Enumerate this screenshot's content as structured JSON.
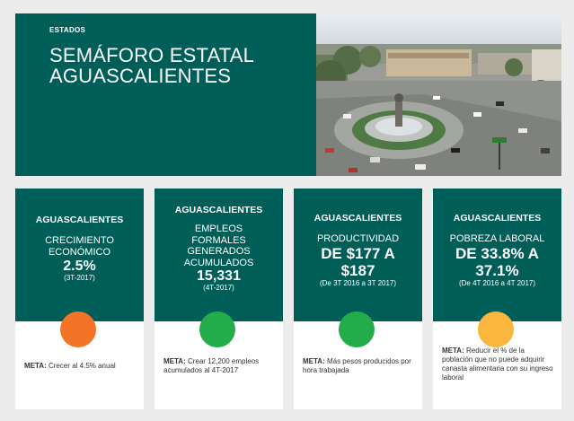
{
  "header": {
    "category": "ESTADOS",
    "title_line1": "SEMÁFORO ESTATAL",
    "title_line2": "AGUASCALIENTES"
  },
  "colors": {
    "teal": "#005e59",
    "orange": "#f47427",
    "green": "#22ac4a",
    "yellow": "#f9b73d"
  },
  "cards": [
    {
      "state": "AGUASCALIENTES",
      "indicator": "CRECIMIENTO ECONÓMICO",
      "value": "2.5%",
      "period": "(3T-2017)",
      "status": "orange",
      "goal_label": "META:",
      "goal_text": "Crecer al 4.5% anual"
    },
    {
      "state": "AGUASCALIENTES",
      "indicator": "EMPLEOS FORMALES GENERADOS ACUMULADOS",
      "value": "15,331",
      "period": "(4T-2017)",
      "status": "green",
      "goal_label": "META:",
      "goal_text": "Crear 12,200 empleos acumulados al 4T-2017"
    },
    {
      "state": "AGUASCALIENTES",
      "indicator": "PRODUCTIVIDAD",
      "value": "DE $177 A $187",
      "period": "(De 3T 2016 a 3T 2017)",
      "status": "green",
      "goal_label": "META:",
      "goal_text": "Más pesos producidos por hora trabajada"
    },
    {
      "state": "AGUASCALIENTES",
      "indicator": "POBREZA LABORAL",
      "value": "DE 33.8% A 37.1%",
      "period": "(De 4T 2016 a 4T 2017)",
      "status": "yellow",
      "goal_label": "META:",
      "goal_text": "Reducir el % de la población que no puede adquirir canasta alimentaria con su ingreso laboral"
    }
  ]
}
